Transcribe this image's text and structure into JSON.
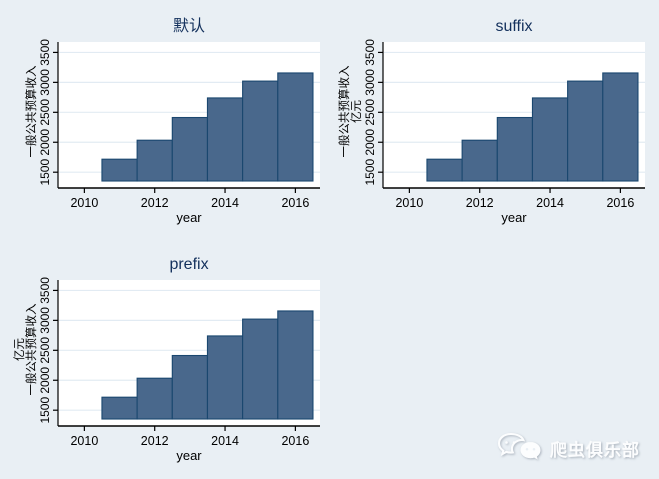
{
  "page": {
    "background": "#e9eff4",
    "watermark": {
      "label": "爬虫俱乐部",
      "icon": "wechat-bubbles-icon",
      "color": "#fcfdfe"
    }
  },
  "colors": {
    "bar_fill": "#49688C",
    "bar_stroke": "#1A476F",
    "plot_bg": "#ffffff",
    "grid": "#e2ebf3",
    "axis": "#000000",
    "tick_text": "#000000",
    "title_text": "#13305c"
  },
  "chart_data": [
    {
      "type": "bar",
      "title": "默认",
      "xlabel": "year",
      "ylabel_lines": [
        "一般公共预算收入"
      ],
      "categories": [
        2011,
        2012,
        2013,
        2014,
        2015,
        2016
      ],
      "values": [
        1717,
        2034,
        2413,
        2740,
        3021,
        3157
      ],
      "bar_width": 1,
      "xticks": [
        2010,
        2012,
        2014,
        2016
      ],
      "yticks": [
        1500,
        2000,
        2500,
        3000,
        3500
      ],
      "xlim": [
        2009.25,
        2016.7
      ],
      "ylim": [
        1353,
        3674
      ],
      "grid": true,
      "legend": "none",
      "position": "top-left"
    },
    {
      "type": "bar",
      "title": "suffix",
      "xlabel": "year",
      "ylabel_lines": [
        "一般公共预算收入",
        "亿元"
      ],
      "categories": [
        2011,
        2012,
        2013,
        2014,
        2015,
        2016
      ],
      "values": [
        1717,
        2034,
        2413,
        2740,
        3021,
        3157
      ],
      "bar_width": 1,
      "xticks": [
        2010,
        2012,
        2014,
        2016
      ],
      "yticks": [
        1500,
        2000,
        2500,
        3000,
        3500
      ],
      "xlim": [
        2009.25,
        2016.7
      ],
      "ylim": [
        1353,
        3674
      ],
      "grid": true,
      "legend": "none",
      "position": "top-right"
    },
    {
      "type": "bar",
      "title": "prefix",
      "xlabel": "year",
      "ylabel_lines": [
        "亿元",
        "一般公共预算收入"
      ],
      "categories": [
        2011,
        2012,
        2013,
        2014,
        2015,
        2016
      ],
      "values": [
        1717,
        2034,
        2413,
        2740,
        3021,
        3157
      ],
      "bar_width": 1,
      "xticks": [
        2010,
        2012,
        2014,
        2016
      ],
      "yticks": [
        1500,
        2000,
        2500,
        3000,
        3500
      ],
      "xlim": [
        2009.25,
        2016.7
      ],
      "ylim": [
        1353,
        3674
      ],
      "grid": true,
      "legend": "none",
      "position": "bottom-left"
    }
  ]
}
